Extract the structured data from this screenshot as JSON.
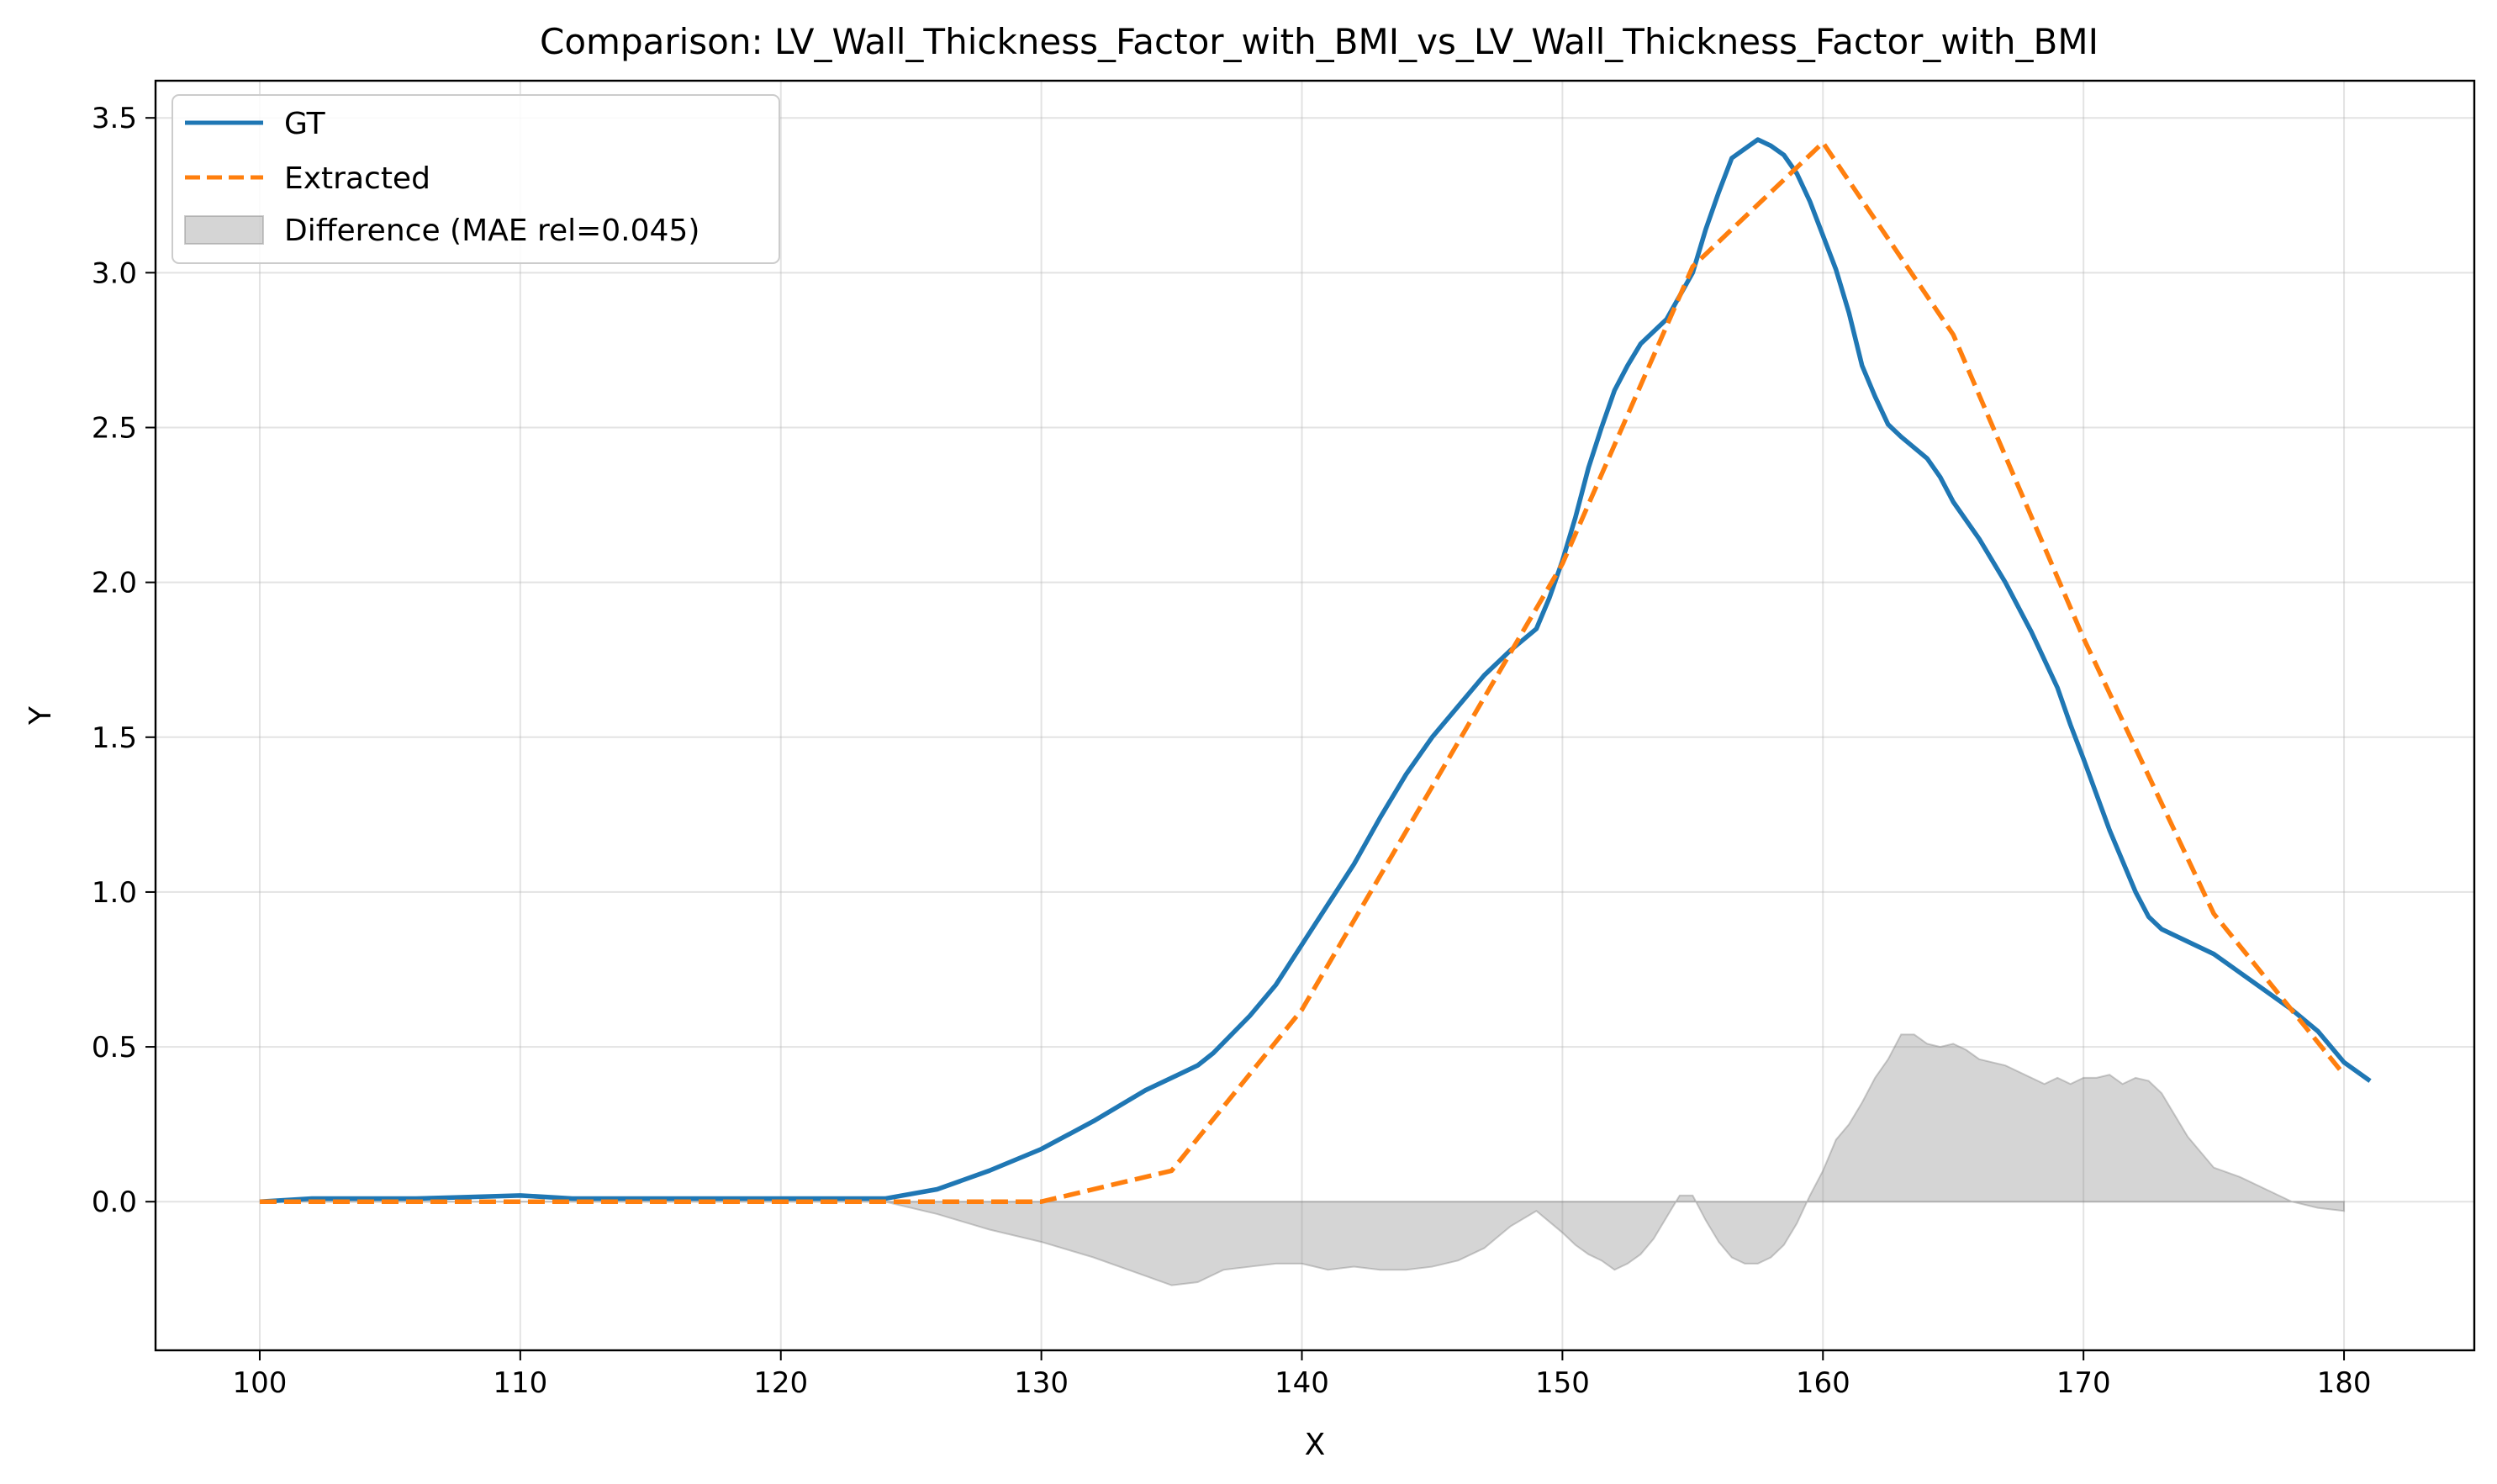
{
  "chart_data": {
    "type": "line",
    "title": "Comparison: LV_Wall_Thickness_Factor_with_BMI_vs_LV_Wall_Thickness_Factor_with_BMI",
    "xlabel": "X",
    "ylabel": "Y",
    "xlim": [
      96,
      185
    ],
    "ylim": [
      -0.48,
      3.62
    ],
    "xticks": [
      100,
      110,
      120,
      130,
      140,
      150,
      160,
      170,
      180
    ],
    "yticks": [
      0.0,
      0.5,
      1.0,
      1.5,
      2.0,
      2.5,
      3.0,
      3.5
    ],
    "grid": true,
    "legend_position": "top-left",
    "series": [
      {
        "name": "GT",
        "color": "#1f77b4",
        "style": "solid",
        "x": [
          100,
          102,
          104,
          106,
          108,
          110,
          112,
          114,
          116,
          118,
          120,
          122,
          124,
          126,
          128,
          130,
          132,
          134,
          136,
          136.6,
          138,
          139,
          140,
          141,
          142,
          143,
          144,
          145,
          146,
          147,
          148,
          149,
          149.5,
          150,
          150.5,
          151,
          151.5,
          152,
          152.5,
          153,
          154,
          155,
          155.5,
          156,
          156.5,
          157,
          157.5,
          158,
          158.5,
          159,
          159.5,
          160,
          160.5,
          161,
          161.5,
          162,
          162.5,
          163,
          164,
          164.5,
          165,
          166,
          167,
          168,
          169,
          169.5,
          170,
          171,
          172,
          172.5,
          173,
          174,
          175,
          176,
          177,
          178,
          179,
          180,
          181
        ],
        "y": [
          0.0,
          0.01,
          0.01,
          0.01,
          0.015,
          0.02,
          0.01,
          0.01,
          0.01,
          0.01,
          0.01,
          0.01,
          0.01,
          0.04,
          0.1,
          0.17,
          0.26,
          0.36,
          0.44,
          0.48,
          0.6,
          0.7,
          0.83,
          0.96,
          1.09,
          1.24,
          1.38,
          1.5,
          1.6,
          1.7,
          1.78,
          1.85,
          1.95,
          2.07,
          2.21,
          2.37,
          2.5,
          2.62,
          2.7,
          2.77,
          2.85,
          3.0,
          3.14,
          3.26,
          3.37,
          3.4,
          3.43,
          3.41,
          3.38,
          3.32,
          3.23,
          3.12,
          3.01,
          2.87,
          2.7,
          2.6,
          2.51,
          2.47,
          2.4,
          2.34,
          2.26,
          2.14,
          2.0,
          1.84,
          1.66,
          1.54,
          1.43,
          1.2,
          1.0,
          0.92,
          0.88,
          0.84,
          0.8,
          0.74,
          0.68,
          0.62,
          0.55,
          0.45,
          0.39
        ]
      },
      {
        "name": "Extracted",
        "color": "#ff7f0e",
        "style": "dashed",
        "x": [
          100,
          105,
          110,
          115,
          120,
          125,
          130,
          135,
          140,
          145,
          150,
          155,
          160,
          165,
          170,
          175,
          180
        ],
        "y": [
          0.0,
          0.0,
          0.0,
          0.0,
          0.0,
          0.0,
          0.0,
          0.1,
          0.62,
          1.34,
          2.06,
          3.02,
          3.42,
          2.8,
          1.82,
          0.93,
          0.41
        ]
      }
    ],
    "difference": {
      "name": "Difference (MAE rel=0.045)",
      "color": "#808080",
      "x": [
        100,
        122,
        124,
        126,
        128,
        130,
        132,
        134,
        135,
        136,
        137,
        138,
        139,
        140,
        141,
        142,
        143,
        144,
        145,
        146,
        147,
        148,
        149,
        150,
        150.5,
        151,
        151.5,
        152,
        152.5,
        153,
        153.5,
        154,
        154.5,
        155,
        155.5,
        156,
        156.5,
        157,
        157.5,
        158,
        158.5,
        159,
        159.5,
        160,
        160.5,
        161,
        161.5,
        162,
        162.5,
        163,
        163.5,
        164,
        164.5,
        165,
        165.5,
        166,
        167,
        168,
        168.5,
        169,
        169.5,
        170,
        170.5,
        171,
        171.5,
        172,
        172.5,
        173,
        174,
        175,
        176,
        177,
        178,
        179,
        180
      ],
      "y": [
        0.0,
        0.0,
        0.0,
        -0.04,
        -0.09,
        -0.13,
        -0.18,
        -0.24,
        -0.27,
        -0.26,
        -0.22,
        -0.21,
        -0.2,
        -0.2,
        -0.22,
        -0.21,
        -0.22,
        -0.22,
        -0.21,
        -0.19,
        -0.15,
        -0.08,
        -0.03,
        -0.1,
        -0.14,
        -0.17,
        -0.19,
        -0.22,
        -0.2,
        -0.17,
        -0.12,
        -0.05,
        0.02,
        0.02,
        -0.06,
        -0.13,
        -0.18,
        -0.2,
        -0.2,
        -0.18,
        -0.14,
        -0.07,
        0.02,
        0.1,
        0.2,
        0.25,
        0.32,
        0.4,
        0.46,
        0.54,
        0.54,
        0.51,
        0.5,
        0.51,
        0.49,
        0.46,
        0.44,
        0.4,
        0.38,
        0.4,
        0.38,
        0.4,
        0.4,
        0.41,
        0.38,
        0.4,
        0.39,
        0.35,
        0.21,
        0.11,
        0.08,
        0.04,
        0.0,
        -0.02,
        -0.03
      ]
    }
  }
}
